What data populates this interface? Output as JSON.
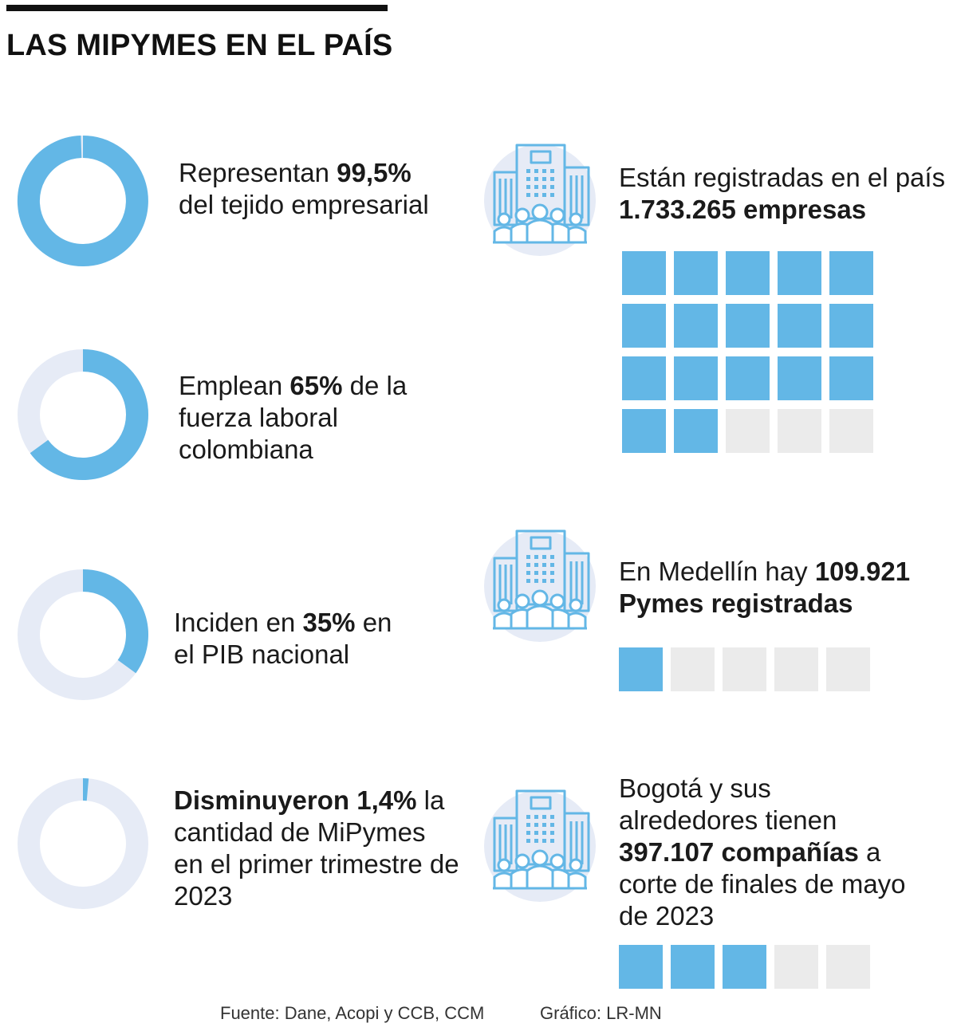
{
  "header": {
    "title": "LAS MIPYMES EN EL PAÍS"
  },
  "colors": {
    "accent": "#63b7e6",
    "track": "#e6ebf6",
    "inactive": "#ebebeb",
    "icon_bg": "#e6ebf6"
  },
  "icons": {
    "building": "office-building-with-people-icon"
  },
  "chart_data": [
    {
      "type": "donut",
      "value": 99.5,
      "unit": "%",
      "pre": "Representan ",
      "bold": "99,5%",
      "post": " del tejido empresarial"
    },
    {
      "type": "donut",
      "value": 65,
      "unit": "%",
      "pre": "Emplean ",
      "bold": "65%",
      "post": " de la fuerza laboral colombiana"
    },
    {
      "type": "donut",
      "value": 35,
      "unit": "%",
      "pre": "Inciden en ",
      "bold": "35%",
      "post": " en el PIB nacional"
    },
    {
      "type": "donut",
      "value": 1.4,
      "unit": "%",
      "pre": "",
      "bold": "Disminuyeron 1,4%",
      "post": " la cantidad de MiPymes en el primer trimestre de 2023"
    },
    {
      "type": "waffle",
      "total": 20,
      "filled": 17,
      "pre": "Están registradas en el país ",
      "bold": "1.733.265 empresas",
      "post": ""
    },
    {
      "type": "waffle",
      "total": 5,
      "filled": 1,
      "pre": "En Medellín hay ",
      "bold": "109.921 Pymes registradas",
      "post": ""
    },
    {
      "type": "waffle",
      "total": 5,
      "filled": 3,
      "pre": "Bogotá y sus alrededores tienen ",
      "bold": "397.107 compañías",
      "post": " a corte de finales de mayo de 2023"
    }
  ],
  "footer": {
    "source": "Fuente: Dane, Acopi y CCB,  CCM",
    "credit": "Gráfico: LR-MN"
  }
}
